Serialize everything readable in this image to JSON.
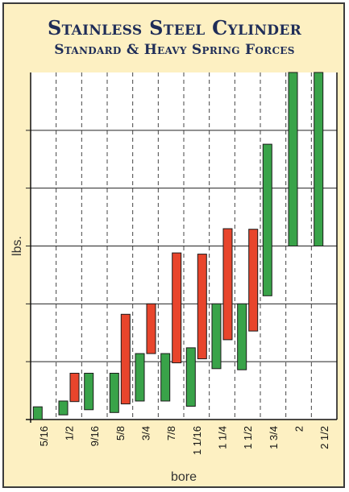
{
  "chart_data": {
    "type": "bar",
    "subtype": "floating-range",
    "title": "Stainless Steel Cylinder",
    "subtitle": "Standard & Heavy Spring Forces",
    "xlabel": "bore",
    "ylabel": "lbs.",
    "y_tick_labels": "none",
    "ylim": [
      0,
      6
    ],
    "grid": true,
    "categories": [
      "5/16",
      "1/2",
      "9/16",
      "5/8",
      "3/4",
      "7/8",
      "1 1/16",
      "1 1/4",
      "1 1/2",
      "1 3/4",
      "2",
      "2 1/2"
    ],
    "series": [
      {
        "color": "#39a349",
        "ranges": [
          [
            0,
            0.22
          ],
          [
            0.08,
            0.32
          ],
          [
            0.17,
            0.8
          ],
          [
            0.12,
            0.8
          ],
          [
            0.32,
            1.14
          ],
          [
            0.32,
            1.14
          ],
          [
            0.23,
            1.24
          ],
          [
            0.88,
            2
          ],
          [
            0.86,
            2
          ],
          [
            2.14,
            4.76
          ],
          [
            3,
            6.1
          ],
          [
            3,
            6.1
          ]
        ]
      },
      {
        "color": "#e8452c",
        "ranges": [
          null,
          [
            0.31,
            0.8
          ],
          null,
          [
            0.27,
            1.82
          ],
          [
            1.14,
            2
          ],
          [
            0.98,
            2.88
          ],
          [
            1.05,
            2.86
          ],
          [
            1.38,
            3.3
          ],
          [
            1.53,
            3.29
          ],
          null,
          null,
          null
        ]
      }
    ]
  }
}
